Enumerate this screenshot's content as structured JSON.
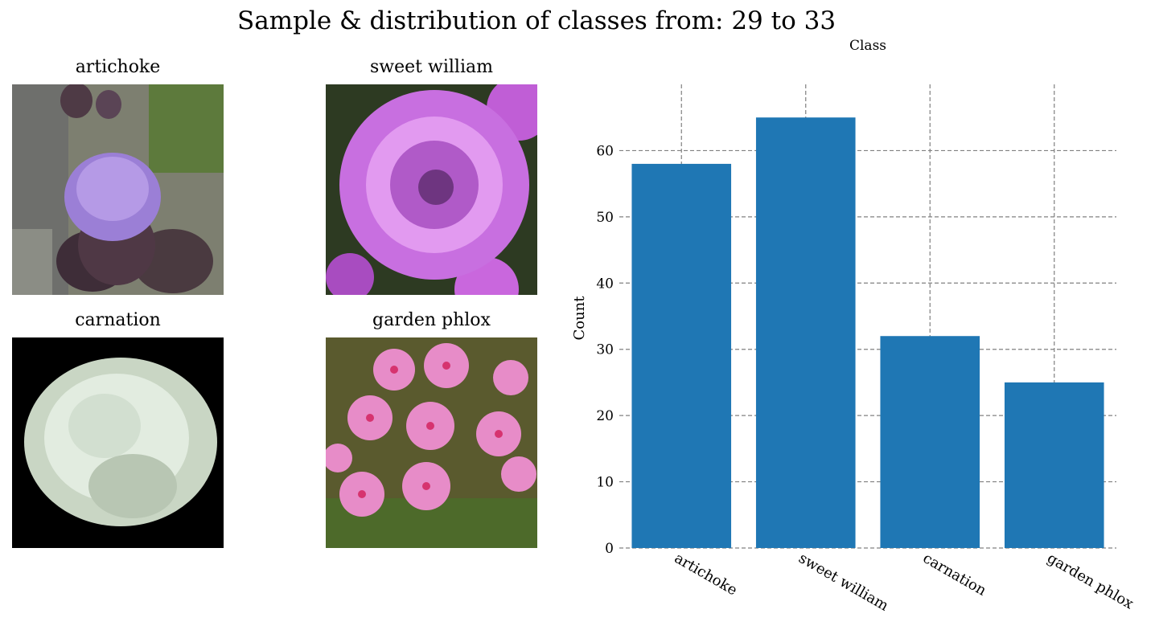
{
  "figure": {
    "title": "Sample & distribution of classes from: 29 to 33"
  },
  "samples": [
    {
      "label": "artichoke"
    },
    {
      "label": "sweet william"
    },
    {
      "label": "carnation"
    },
    {
      "label": "garden phlox"
    }
  ],
  "chart_data": {
    "type": "bar",
    "title": "Class",
    "xlabel": "",
    "ylabel": "Count",
    "categories": [
      "artichoke",
      "sweet william",
      "carnation",
      "garden phlox"
    ],
    "values": [
      58,
      65,
      32,
      25
    ],
    "ylim": [
      0,
      70
    ],
    "yticks": [
      0,
      10,
      20,
      30,
      40,
      50,
      60
    ],
    "grid": true,
    "grid_style": "dashed",
    "bar_color": "#1f77b4",
    "legend": "none"
  }
}
